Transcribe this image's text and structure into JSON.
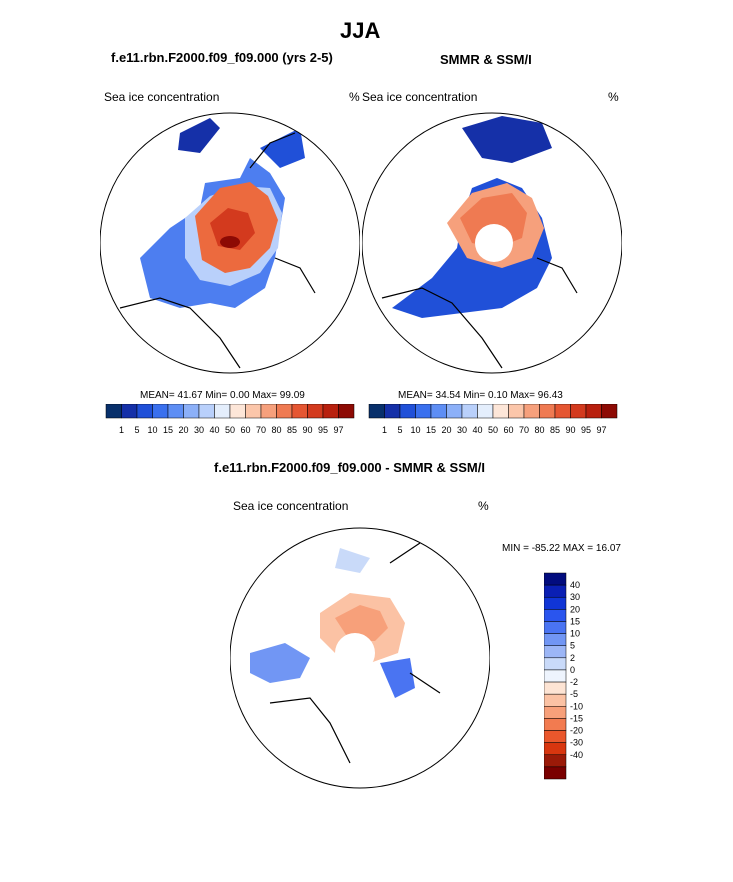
{
  "page": {
    "title": "JJA"
  },
  "panels": {
    "model": {
      "subtitle": "f.e11.rbn.F2000.f09_f09.000 (yrs 2-5)",
      "field_label": "Sea ice concentration",
      "units": "%",
      "stats": "MEAN=  41.67  Min=   0.00  Max=  99.09"
    },
    "obs": {
      "subtitle": "SMMR & SSM/I",
      "field_label": "Sea ice concentration",
      "units": "%",
      "stats": "MEAN=  34.54  Min=   0.10  Max=  96.43"
    },
    "diff": {
      "subtitle": "f.e11.rbn.F2000.f09_f09.000 - SMMR & SSM/I",
      "field_label": "Sea ice concentration",
      "units": "%",
      "stats": "MIN = -85.22 MAX =  16.07"
    }
  },
  "colors": {
    "abs_scale": [
      "#08306b",
      "#1530a8",
      "#2050d8",
      "#3a70ee",
      "#5e8ef4",
      "#8cb0f8",
      "#b9d0fb",
      "#e4eefc",
      "#fde6d8",
      "#fbc6aa",
      "#f6a07c",
      "#ef7a52",
      "#e55632",
      "#d33a1e",
      "#b8200e",
      "#8d0a04"
    ],
    "diff_scale": [
      "#020c7e",
      "#0a1fb4",
      "#1035d6",
      "#2a55ee",
      "#4a74f2",
      "#7196f4",
      "#9cb6f6",
      "#c9daf9",
      "#eef4fd",
      "#fde4d4",
      "#fbc2a4",
      "#f7a07a",
      "#f27b50",
      "#ea572c",
      "#d8360f",
      "#9b1a08",
      "#7a0000"
    ]
  },
  "chart_data": [
    {
      "type": "heatmap",
      "title": "f.e11.rbn.F2000.f09_f09.000 (yrs 2-5)",
      "variable": "Sea ice concentration",
      "units": "%",
      "mean": 41.67,
      "min": 0.0,
      "max": 99.09,
      "colorbar_levels": [
        "1",
        "5",
        "10",
        "15",
        "20",
        "30",
        "40",
        "50",
        "60",
        "70",
        "80",
        "85",
        "90",
        "95",
        "97"
      ]
    },
    {
      "type": "heatmap",
      "title": "SMMR & SSM/I",
      "variable": "Sea ice concentration",
      "units": "%",
      "mean": 34.54,
      "min": 0.1,
      "max": 96.43,
      "colorbar_levels": [
        "1",
        "5",
        "10",
        "15",
        "20",
        "30",
        "40",
        "50",
        "60",
        "70",
        "80",
        "85",
        "90",
        "95",
        "97"
      ]
    },
    {
      "type": "heatmap",
      "title": "f.e11.rbn.F2000.f09_f09.000 - SMMR & SSM/I",
      "variable": "Sea ice concentration",
      "units": "%",
      "min": -85.22,
      "max": 16.07,
      "colorbar_levels": [
        "40",
        "30",
        "20",
        "15",
        "10",
        "5",
        "2",
        "0",
        "-2",
        "-5",
        "-10",
        "-15",
        "-20",
        "-30",
        "-40"
      ]
    }
  ]
}
